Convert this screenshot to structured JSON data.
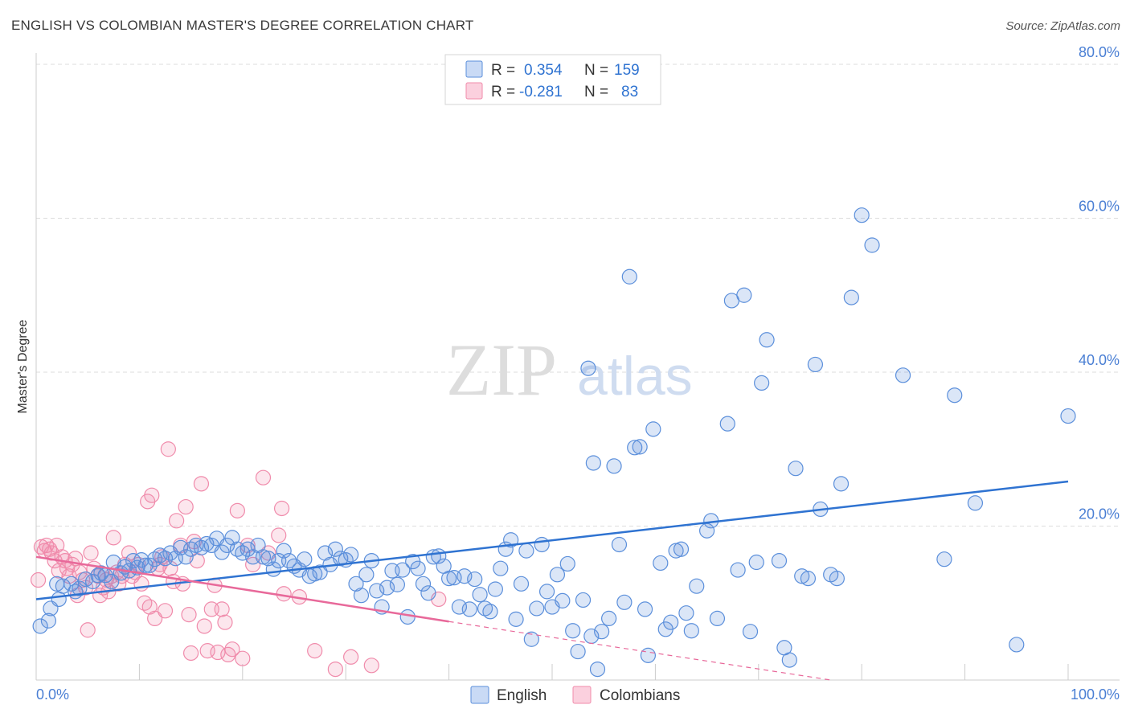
{
  "title": "ENGLISH VS COLOMBIAN MASTER'S DEGREE CORRELATION CHART",
  "source": "Source: ZipAtlas.com",
  "watermark": {
    "zip": "ZIP",
    "atlas": "atlas"
  },
  "colors": {
    "english": "#5b8fdb",
    "english_line": "#2f73d1",
    "colombians": "#f08bab",
    "colombians_line": "#e8699a",
    "axis_text": "#4a7fd4",
    "grid": "#dddddd"
  },
  "legend_box": {
    "rows": [
      {
        "r_label": "R =",
        "r_value": "0.354",
        "n_label": "N =",
        "n_value": "159"
      },
      {
        "r_label": "R =",
        "r_value": "-0.281",
        "n_label": "N =",
        "n_value": "83"
      }
    ]
  },
  "bottom_legend": [
    "English",
    "Colombians"
  ],
  "chart_data": {
    "type": "scatter",
    "title": "ENGLISH VS COLOMBIAN MASTER'S DEGREE CORRELATION CHART",
    "xlabel": "",
    "ylabel": "Master's Degree",
    "xlim": [
      0,
      100
    ],
    "ylim": [
      0,
      80
    ],
    "x_tick_labels": [
      "0.0%",
      "100.0%"
    ],
    "y_ticks": [
      20,
      40,
      60,
      80
    ],
    "y_tick_labels": [
      "20.0%",
      "40.0%",
      "60.0%",
      "80.0%"
    ],
    "grid": true,
    "legend_position": "top-center",
    "series": [
      {
        "name": "English",
        "r": 0.354,
        "n": 159,
        "trend": {
          "x": [
            0,
            100
          ],
          "y": [
            10.5,
            25.8
          ]
        },
        "points": [
          [
            0.4,
            7
          ],
          [
            1.2,
            7.7
          ],
          [
            1.4,
            9.3
          ],
          [
            2.0,
            12.5
          ],
          [
            2.2,
            10.5
          ],
          [
            2.6,
            12.2
          ],
          [
            3.4,
            12.5
          ],
          [
            3.8,
            11.5
          ],
          [
            4.2,
            11.9
          ],
          [
            4.8,
            13.1
          ],
          [
            5.5,
            12.8
          ],
          [
            6.0,
            13.6
          ],
          [
            6.3,
            13.9
          ],
          [
            6.7,
            13.6
          ],
          [
            7.3,
            12.8
          ],
          [
            7.5,
            15.3
          ],
          [
            8.2,
            13.9
          ],
          [
            8.6,
            14.7
          ],
          [
            9.0,
            14.2
          ],
          [
            9.4,
            15.5
          ],
          [
            9.8,
            14.6
          ],
          [
            10.2,
            15.6
          ],
          [
            10.6,
            14.9
          ],
          [
            11.0,
            14.9
          ],
          [
            11.5,
            15.7
          ],
          [
            12.0,
            16.2
          ],
          [
            12.5,
            15.8
          ],
          [
            13.0,
            16.5
          ],
          [
            13.5,
            15.8
          ],
          [
            14.0,
            17.2
          ],
          [
            14.5,
            16.0
          ],
          [
            15.0,
            17.0
          ],
          [
            15.5,
            17.5
          ],
          [
            16.0,
            17.2
          ],
          [
            16.5,
            17.7
          ],
          [
            17.0,
            17.5
          ],
          [
            17.5,
            18.4
          ],
          [
            18.0,
            16.6
          ],
          [
            18.5,
            17.5
          ],
          [
            19.0,
            18.5
          ],
          [
            19.5,
            17.0
          ],
          [
            20.0,
            16.5
          ],
          [
            20.5,
            17.0
          ],
          [
            21.0,
            16.0
          ],
          [
            21.5,
            17.5
          ],
          [
            22.0,
            16.0
          ],
          [
            22.5,
            15.8
          ],
          [
            23.0,
            14.4
          ],
          [
            23.5,
            15.5
          ],
          [
            24.0,
            16.8
          ],
          [
            24.5,
            15.5
          ],
          [
            25.0,
            14.8
          ],
          [
            25.5,
            14.3
          ],
          [
            26.0,
            15.7
          ],
          [
            26.5,
            13.5
          ],
          [
            27.0,
            13.8
          ],
          [
            27.5,
            14.0
          ],
          [
            28.0,
            16.5
          ],
          [
            28.5,
            15.0
          ],
          [
            29.0,
            17.0
          ],
          [
            29.5,
            15.8
          ],
          [
            30.0,
            15.6
          ],
          [
            30.5,
            16.3
          ],
          [
            31.0,
            12.5
          ],
          [
            31.5,
            11.0
          ],
          [
            32.0,
            13.7
          ],
          [
            32.5,
            15.5
          ],
          [
            33.0,
            11.6
          ],
          [
            33.5,
            9.5
          ],
          [
            34.0,
            12.0
          ],
          [
            34.5,
            14.2
          ],
          [
            35.0,
            12.4
          ],
          [
            35.5,
            14.3
          ],
          [
            36.0,
            8.2
          ],
          [
            36.5,
            15.4
          ],
          [
            37.0,
            14.5
          ],
          [
            37.5,
            12.5
          ],
          [
            38.0,
            11.3
          ],
          [
            38.5,
            16.0
          ],
          [
            39.0,
            16.1
          ],
          [
            39.5,
            14.8
          ],
          [
            40.0,
            13.2
          ],
          [
            40.5,
            13.3
          ],
          [
            41.0,
            9.5
          ],
          [
            41.5,
            13.5
          ],
          [
            42.0,
            9.2
          ],
          [
            42.5,
            13.1
          ],
          [
            43.0,
            11.1
          ],
          [
            43.5,
            9.3
          ],
          [
            44.0,
            8.9
          ],
          [
            44.5,
            11.8
          ],
          [
            45.0,
            14.5
          ],
          [
            45.5,
            17.0
          ],
          [
            46.0,
            18.2
          ],
          [
            46.5,
            7.9
          ],
          [
            47.0,
            12.5
          ],
          [
            47.5,
            16.8
          ],
          [
            48.0,
            5.3
          ],
          [
            48.5,
            9.3
          ],
          [
            49.0,
            17.6
          ],
          [
            49.5,
            11.5
          ],
          [
            50.0,
            9.5
          ],
          [
            50.5,
            13.7
          ],
          [
            51.0,
            10.3
          ],
          [
            51.5,
            15.1
          ],
          [
            52.0,
            6.4
          ],
          [
            52.5,
            3.7
          ],
          [
            53.0,
            10.4
          ],
          [
            53.5,
            40.5
          ],
          [
            53.8,
            5.7
          ],
          [
            54.0,
            28.2
          ],
          [
            54.4,
            1.4
          ],
          [
            54.8,
            6.3
          ],
          [
            55.5,
            8.0
          ],
          [
            56.0,
            27.8
          ],
          [
            56.5,
            17.6
          ],
          [
            57.0,
            10.1
          ],
          [
            57.5,
            52.4
          ],
          [
            58.0,
            30.2
          ],
          [
            58.5,
            30.3
          ],
          [
            59.0,
            9.2
          ],
          [
            59.3,
            3.2
          ],
          [
            59.8,
            32.6
          ],
          [
            60.5,
            15.2
          ],
          [
            61.0,
            6.6
          ],
          [
            61.5,
            7.5
          ],
          [
            62.0,
            16.8
          ],
          [
            62.5,
            17.0
          ],
          [
            63.0,
            8.7
          ],
          [
            63.5,
            6.4
          ],
          [
            64.0,
            12.2
          ],
          [
            65.0,
            19.4
          ],
          [
            65.4,
            20.7
          ],
          [
            66.0,
            8.0
          ],
          [
            67.0,
            33.3
          ],
          [
            67.4,
            49.3
          ],
          [
            68.0,
            14.3
          ],
          [
            68.6,
            50.0
          ],
          [
            69.2,
            6.3
          ],
          [
            69.8,
            15.3
          ],
          [
            70.3,
            38.6
          ],
          [
            70.8,
            44.2
          ],
          [
            72.0,
            15.5
          ],
          [
            72.5,
            4.2
          ],
          [
            73.0,
            2.6
          ],
          [
            73.6,
            27.5
          ],
          [
            74.2,
            13.5
          ],
          [
            74.8,
            13.2
          ],
          [
            75.5,
            41.0
          ],
          [
            76.0,
            22.2
          ],
          [
            77.0,
            13.7
          ],
          [
            77.6,
            13.2
          ],
          [
            78.0,
            25.5
          ],
          [
            79.0,
            49.7
          ],
          [
            80.0,
            60.4
          ],
          [
            81.0,
            56.5
          ],
          [
            84.0,
            39.6
          ],
          [
            88.0,
            15.7
          ],
          [
            89.0,
            37.0
          ],
          [
            91.0,
            23.0
          ],
          [
            95.0,
            4.6
          ],
          [
            100.0,
            34.3
          ]
        ]
      },
      {
        "name": "Colombians",
        "r": -0.281,
        "n": 83,
        "trend": {
          "x": [
            0,
            40
          ],
          "y": [
            16.0,
            7.6
          ],
          "dashed_extension": {
            "x": [
              40,
              77
            ],
            "y": [
              7.6,
              0
            ]
          }
        },
        "points": [
          [
            0.2,
            13.0
          ],
          [
            0.5,
            17.3
          ],
          [
            0.8,
            16.8
          ],
          [
            1.0,
            17.5
          ],
          [
            1.3,
            17.0
          ],
          [
            1.5,
            16.5
          ],
          [
            1.8,
            15.5
          ],
          [
            2.0,
            17.5
          ],
          [
            2.2,
            14.2
          ],
          [
            2.5,
            16.0
          ],
          [
            2.8,
            15.5
          ],
          [
            3.0,
            14.5
          ],
          [
            3.2,
            13.5
          ],
          [
            3.5,
            15.0
          ],
          [
            3.8,
            15.8
          ],
          [
            4.0,
            11.0
          ],
          [
            4.2,
            14.0
          ],
          [
            4.5,
            13.0
          ],
          [
            4.8,
            12.0
          ],
          [
            5.0,
            6.5
          ],
          [
            5.3,
            16.5
          ],
          [
            5.6,
            14.5
          ],
          [
            6.0,
            13.5
          ],
          [
            6.2,
            11.0
          ],
          [
            6.5,
            12.0
          ],
          [
            6.8,
            13.0
          ],
          [
            7.0,
            11.5
          ],
          [
            7.3,
            13.5
          ],
          [
            7.5,
            18.5
          ],
          [
            7.8,
            14.0
          ],
          [
            8.0,
            12.5
          ],
          [
            8.3,
            13.5
          ],
          [
            8.6,
            15.0
          ],
          [
            9.0,
            16.5
          ],
          [
            9.3,
            13.5
          ],
          [
            9.6,
            14.0
          ],
          [
            9.9,
            15.0
          ],
          [
            10.2,
            12.5
          ],
          [
            10.5,
            10.0
          ],
          [
            10.8,
            23.2
          ],
          [
            11.0,
            9.5
          ],
          [
            11.2,
            24.0
          ],
          [
            11.5,
            8.0
          ],
          [
            11.8,
            14.5
          ],
          [
            12.0,
            15.0
          ],
          [
            12.2,
            16.0
          ],
          [
            12.5,
            9.0
          ],
          [
            12.8,
            30.0
          ],
          [
            13.0,
            14.5
          ],
          [
            13.3,
            12.8
          ],
          [
            13.6,
            20.7
          ],
          [
            14.0,
            17.5
          ],
          [
            14.2,
            12.5
          ],
          [
            14.5,
            22.5
          ],
          [
            14.8,
            8.5
          ],
          [
            15.0,
            3.5
          ],
          [
            15.3,
            18.0
          ],
          [
            15.6,
            15.5
          ],
          [
            16.0,
            25.5
          ],
          [
            16.3,
            7.0
          ],
          [
            16.6,
            3.8
          ],
          [
            17.0,
            9.2
          ],
          [
            17.3,
            12.3
          ],
          [
            17.6,
            3.6
          ],
          [
            18.0,
            9.2
          ],
          [
            18.3,
            7.5
          ],
          [
            18.6,
            3.3
          ],
          [
            19.0,
            4.0
          ],
          [
            19.5,
            22.0
          ],
          [
            20.0,
            2.8
          ],
          [
            20.5,
            17.5
          ],
          [
            21.0,
            15.0
          ],
          [
            22.0,
            26.3
          ],
          [
            22.5,
            16.5
          ],
          [
            23.5,
            18.8
          ],
          [
            23.8,
            22.3
          ],
          [
            24.0,
            11.2
          ],
          [
            25.5,
            10.8
          ],
          [
            27.0,
            3.8
          ],
          [
            29.0,
            1.4
          ],
          [
            30.5,
            3.0
          ],
          [
            32.5,
            1.9
          ],
          [
            39.0,
            10.5
          ]
        ]
      }
    ]
  }
}
